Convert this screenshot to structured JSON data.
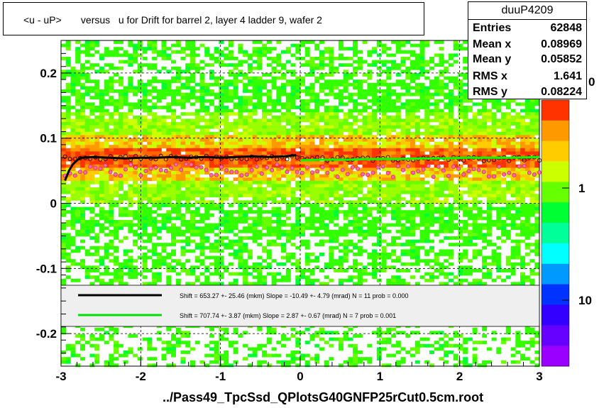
{
  "chart_data": {
    "type": "heatmap",
    "title": "<u - uP>       versus   u for Drift for barrel 2, layer 4 ladder 9, wafer 2",
    "xlabel": "",
    "ylabel": "",
    "xlim": [
      -3,
      3
    ],
    "ylim": [
      -0.25,
      0.25
    ],
    "x_ticks": [
      "-3",
      "-2",
      "-1",
      "0",
      "1",
      "2",
      "3"
    ],
    "y_ticks": [
      "-0.2",
      "-0.1",
      "0",
      "0.1",
      "0.2"
    ],
    "color_scale": {
      "log": true,
      "tick_labels": [
        "1",
        "10"
      ],
      "top_label_fragment": "0",
      "colors": [
        "#ff3300",
        "#ff9900",
        "#ffcc00",
        "#ccff00",
        "#66ff00",
        "#00ff33",
        "#00ff99",
        "#00ffff",
        "#0099ff",
        "#0033ff",
        "#3300ff",
        "#6600ff",
        "#9900ff"
      ]
    },
    "grid": true,
    "series": [
      {
        "color": "#000000",
        "points": [
          [
            -2.95,
            0.035
          ],
          [
            -2.9,
            0.05
          ],
          [
            -2.85,
            0.06
          ],
          [
            -2.8,
            0.066
          ],
          [
            -2.75,
            0.07
          ],
          [
            -2.6,
            0.071
          ],
          [
            -2.4,
            0.07
          ],
          [
            -2.2,
            0.069
          ],
          [
            -2.0,
            0.07
          ],
          [
            -1.8,
            0.07
          ],
          [
            -1.6,
            0.071
          ],
          [
            -1.4,
            0.07
          ],
          [
            -1.2,
            0.071
          ],
          [
            -1.0,
            0.07
          ],
          [
            -0.8,
            0.071
          ],
          [
            -0.6,
            0.072
          ],
          [
            -0.4,
            0.071
          ],
          [
            -0.2,
            0.072
          ],
          [
            -0.05,
            0.074
          ]
        ]
      },
      {
        "color": "#00ff00",
        "points": [
          [
            0.0,
            0.066
          ],
          [
            0.3,
            0.067
          ],
          [
            0.6,
            0.067
          ],
          [
            0.9,
            0.068
          ],
          [
            1.2,
            0.068
          ],
          [
            1.5,
            0.069
          ],
          [
            1.8,
            0.069
          ],
          [
            2.1,
            0.07
          ],
          [
            2.4,
            0.07
          ],
          [
            2.7,
            0.07
          ],
          [
            3.0,
            0.071
          ]
        ]
      }
    ],
    "fit_legend": [
      {
        "color": "#000000",
        "text": "Shift =   653.27 +- 25.46 (mkm) Slope =    -10.49 +- 4.79 (mrad)  N = 11 prob = 0.000"
      },
      {
        "color": "#00dd00",
        "text": "Shift =   707.74 +- 3.87 (mkm) Slope =     2.87 +- 0.67 (mrad)  N = 7 prob = 0.001"
      }
    ]
  },
  "stats": {
    "name": "duuP4209",
    "rows": [
      {
        "label": "Entries",
        "value": "62848"
      },
      {
        "label": "Mean x",
        "value": "0.08969"
      },
      {
        "label": "Mean y",
        "value": "0.05852"
      },
      {
        "label": "RMS x",
        "value": "1.641"
      },
      {
        "label": "RMS y",
        "value": "0.08224"
      }
    ]
  },
  "footer": "../Pass49_TpcSsd_QPlotsG40GNFP25rCut0.5cm.root"
}
